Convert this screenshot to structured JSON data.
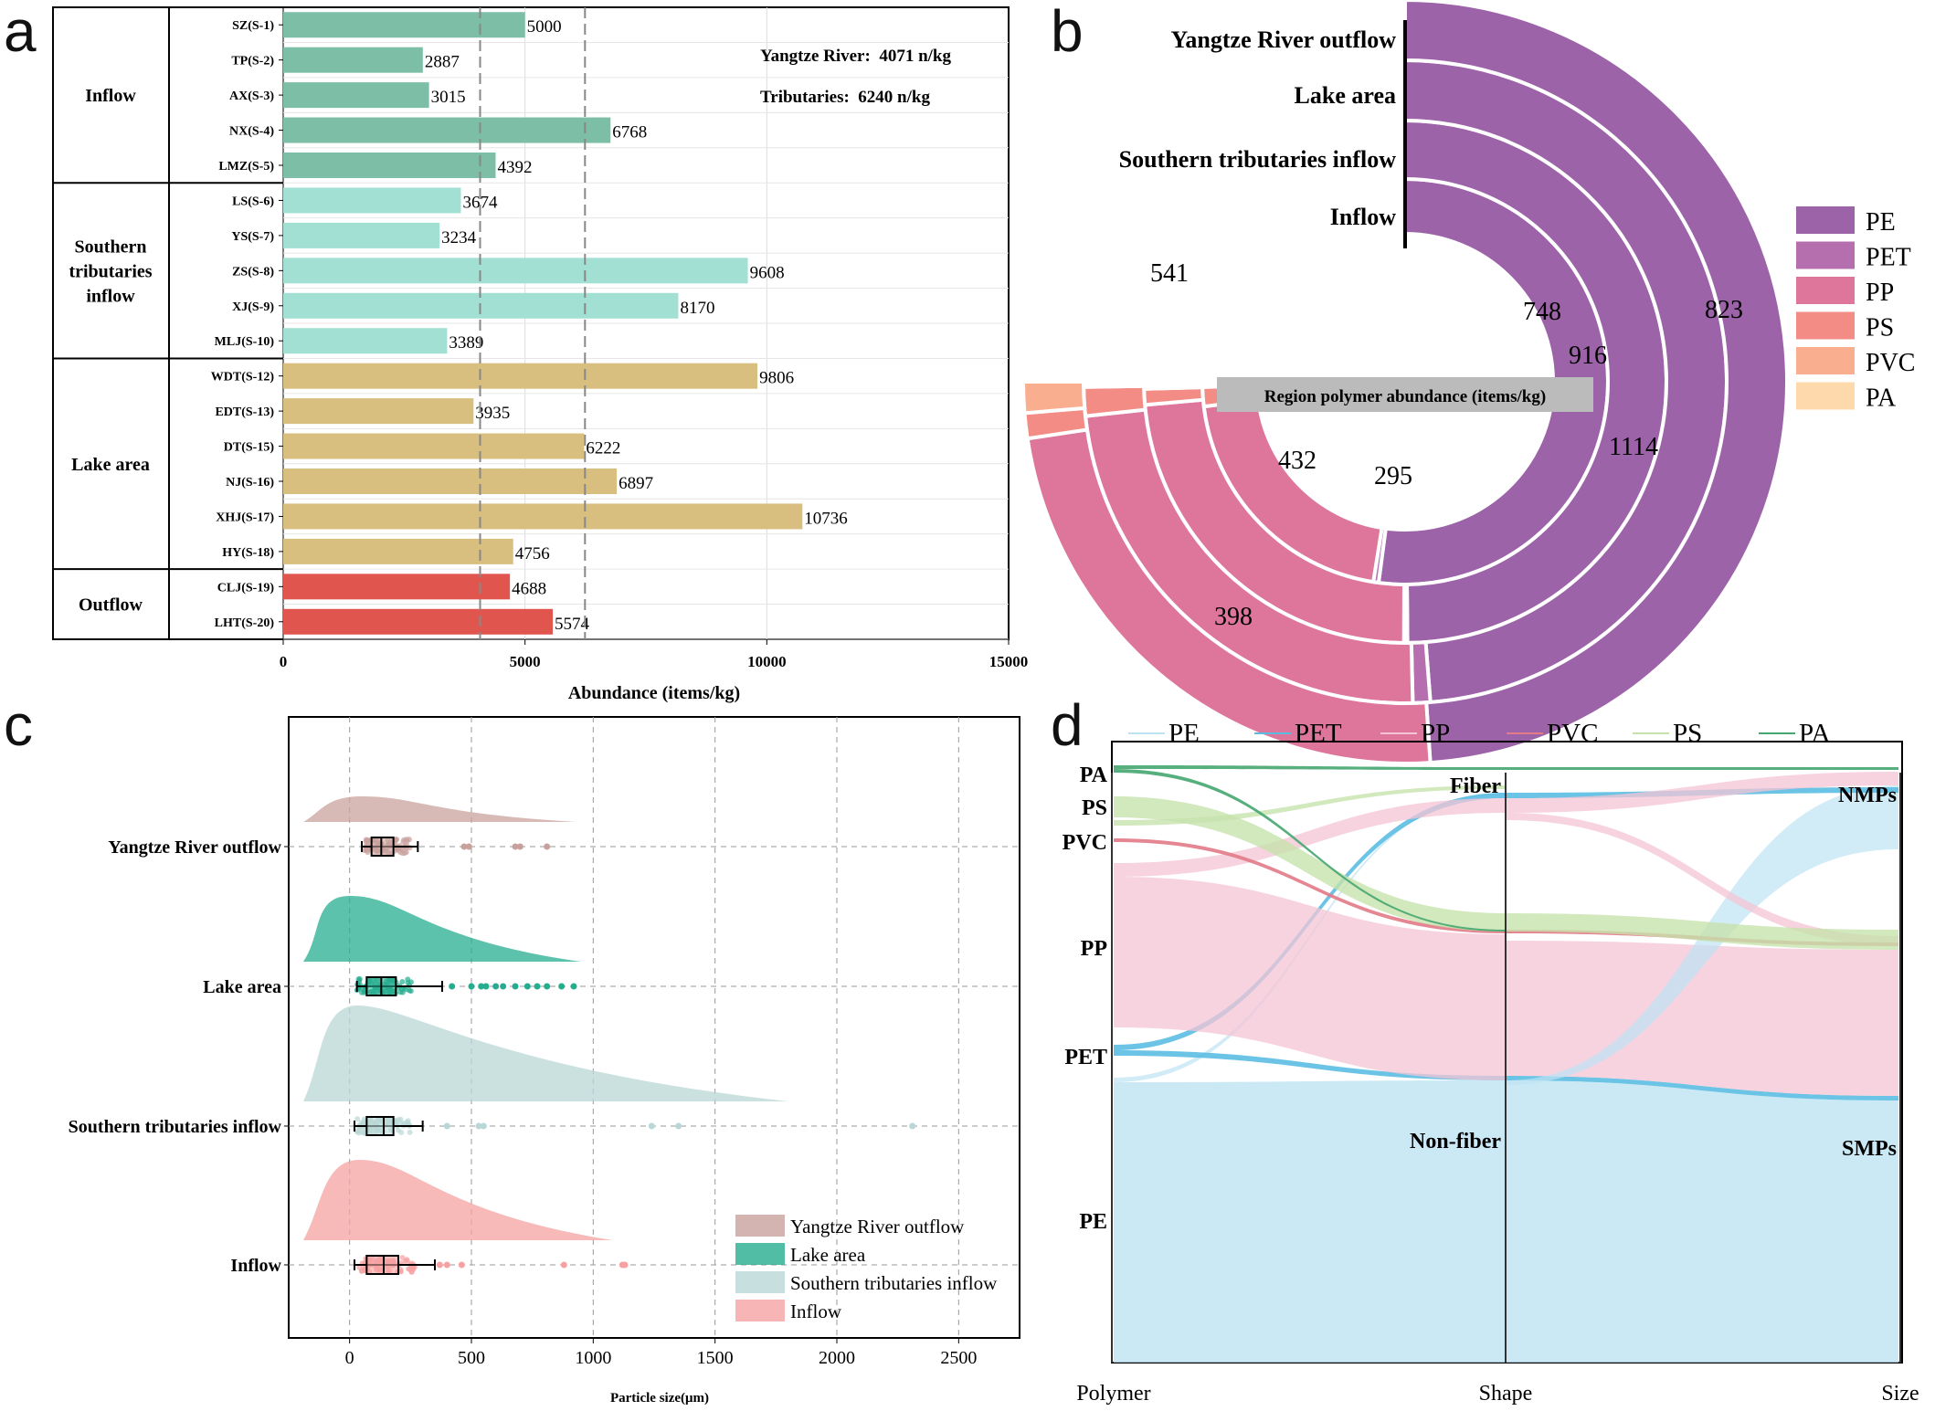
{
  "figure": {
    "panel_letters": [
      "a",
      "b",
      "c",
      "d"
    ]
  },
  "chart_data": [
    {
      "panel": "a",
      "type": "bar",
      "orientation": "horizontal",
      "xlabel": "Abundance (items/kg)",
      "xlim": [
        0,
        15000
      ],
      "xticks": [
        0,
        5000,
        10000,
        15000
      ],
      "annotations": [
        "Yangtze River:  4071 n/kg",
        "Tributaries:  6240 n/kg"
      ],
      "reference_lines": [
        4071,
        6240
      ],
      "groups": [
        {
          "label": "Inflow",
          "color": "#7dbfa6",
          "sites": [
            {
              "name": "SZ(S-1)",
              "value": 5000
            },
            {
              "name": "TP(S-2)",
              "value": 2887
            },
            {
              "name": "AX(S-3)",
              "value": 3015
            },
            {
              "name": "NX(S-4)",
              "value": 6768
            },
            {
              "name": "LMZ(S-5)",
              "value": 4392
            }
          ]
        },
        {
          "label": "Southern tributaries inflow",
          "color": "#a3e0d4",
          "sites": [
            {
              "name": "LS(S-6)",
              "value": 3674
            },
            {
              "name": "YS(S-7)",
              "value": 3234
            },
            {
              "name": "ZS(S-8)",
              "value": 9608
            },
            {
              "name": "XJ(S-9)",
              "value": 8170
            },
            {
              "name": "MLJ(S-10)",
              "value": 3389
            }
          ]
        },
        {
          "label": "Lake area",
          "color": "#d8bf80",
          "sites": [
            {
              "name": "WDT(S-12)",
              "value": 9806
            },
            {
              "name": "EDT(S-13)",
              "value": 3935
            },
            {
              "name": "DT(S-15)",
              "value": 6222
            },
            {
              "name": "NJ(S-16)",
              "value": 6897
            },
            {
              "name": "XHJ(S-17)",
              "value": 10736
            },
            {
              "name": "HY(S-18)",
              "value": 4756
            }
          ]
        },
        {
          "label": "Outflow",
          "color": "#e0554d",
          "sites": [
            {
              "name": "CLJ(S-19)",
              "value": 4688
            },
            {
              "name": "LHT(S-20)",
              "value": 5574
            }
          ]
        }
      ]
    },
    {
      "panel": "b",
      "type": "pie",
      "subtype": "nested-donut",
      "title": "Region polymer abundance (items/kg)",
      "legend": [
        "PE",
        "PET",
        "PP",
        "PS",
        "PVC",
        "PA"
      ],
      "legend_position": "right",
      "colors": {
        "PE": "#9c63a8",
        "PET": "#b56fae",
        "PP": "#de769b",
        "PS": "#f28c85",
        "PVC": "#f9ae8f",
        "PA": "#fdd9ab"
      },
      "rings": [
        {
          "region": "Inflow",
          "segments": [
            {
              "polymer": "PE",
              "value": 748
            },
            {
              "polymer": "PET",
              "value": 6
            },
            {
              "polymer": "PP",
              "value": 295
            },
            {
              "polymer": "PS",
              "value": 22
            },
            {
              "polymer": "PVC",
              "value": 4
            },
            {
              "polymer": "PA",
              "value": 2
            }
          ]
        },
        {
          "region": "Southern tributaries inflow",
          "segments": [
            {
              "polymer": "PE",
              "value": 916
            },
            {
              "polymer": "PET",
              "value": 4
            },
            {
              "polymer": "PP",
              "value": 432
            },
            {
              "polymer": "PS",
              "value": 18
            },
            {
              "polymer": "PVC",
              "value": 4
            },
            {
              "polymer": "PA",
              "value": 4
            }
          ]
        },
        {
          "region": "Lake area",
          "segments": [
            {
              "polymer": "PE",
              "value": 1114
            },
            {
              "polymer": "PET",
              "value": 20
            },
            {
              "polymer": "PP",
              "value": 541
            },
            {
              "polymer": "PS",
              "value": 33
            },
            {
              "polymer": "PVC",
              "value": 3
            },
            {
              "polymer": "PA",
              "value": 3
            }
          ]
        },
        {
          "region": "Yangtze River outflow",
          "segments": [
            {
              "polymer": "PE",
              "value": 823
            },
            {
              "polymer": "PET",
              "value": 0
            },
            {
              "polymer": "PP",
              "value": 398
            },
            {
              "polymer": "PS",
              "value": 18
            },
            {
              "polymer": "PVC",
              "value": 22
            },
            {
              "polymer": "PA",
              "value": 0
            }
          ]
        }
      ]
    },
    {
      "panel": "c",
      "type": "scatter",
      "subtype": "raincloud",
      "xlabel": "Particle size(μm)",
      "xlim": [
        -250,
        2750
      ],
      "xticks": [
        0,
        500,
        1000,
        1500,
        2000,
        2500
      ],
      "legend_position": "bottom-right",
      "series": [
        {
          "name": "Yangtze River outflow",
          "color": "#c9a19c",
          "median": 130,
          "q1": 90,
          "q3": 180,
          "whisker": [
            50,
            280
          ],
          "density_peak": 50,
          "density_max_x": 930,
          "outliers": [
            470,
            490,
            680,
            700,
            810
          ]
        },
        {
          "name": "Lake area",
          "color": "#26ad8f",
          "median": 130,
          "q1": 70,
          "q3": 190,
          "whisker": [
            30,
            380
          ],
          "density_peak": 0,
          "density_max_x": 950,
          "outliers": [
            420,
            500,
            540,
            560,
            600,
            630,
            680,
            730,
            770,
            810,
            870,
            920
          ]
        },
        {
          "name": "Southern tributaries inflow",
          "color": "#b9d7d6",
          "median": 140,
          "q1": 70,
          "q3": 180,
          "whisker": [
            20,
            300
          ],
          "density_peak": 30,
          "density_max_x": 1800,
          "outliers": [
            400,
            530,
            550,
            1240,
            1350,
            2310
          ]
        },
        {
          "name": "Inflow",
          "color": "#f6a2a2",
          "median": 140,
          "q1": 70,
          "q3": 200,
          "whisker": [
            20,
            350
          ],
          "density_peak": 40,
          "density_max_x": 1080,
          "outliers": [
            370,
            400,
            460,
            880,
            1120,
            1130
          ]
        }
      ]
    },
    {
      "panel": "d",
      "type": "diagram",
      "subtype": "alluvial",
      "axes": [
        "Polymer",
        "Shape",
        "Size"
      ],
      "legend": [
        "PE",
        "PET",
        "PP",
        "PVC",
        "PS",
        "PA"
      ],
      "legend_position": "top",
      "colors": {
        "PE": "#bde3f3",
        "PET": "#5bbce2",
        "PP": "#f4c4d4",
        "PVC": "#e27a87",
        "PS": "#c7e2ad",
        "PA": "#45a670"
      },
      "polymer_nodes": [
        "PA",
        "PS",
        "PVC",
        "PP",
        "PET",
        "PE"
      ],
      "shape_nodes": [
        "Fiber",
        "Non-fiber"
      ],
      "size_nodes": [
        "NMPs",
        "SMPs"
      ]
    }
  ]
}
